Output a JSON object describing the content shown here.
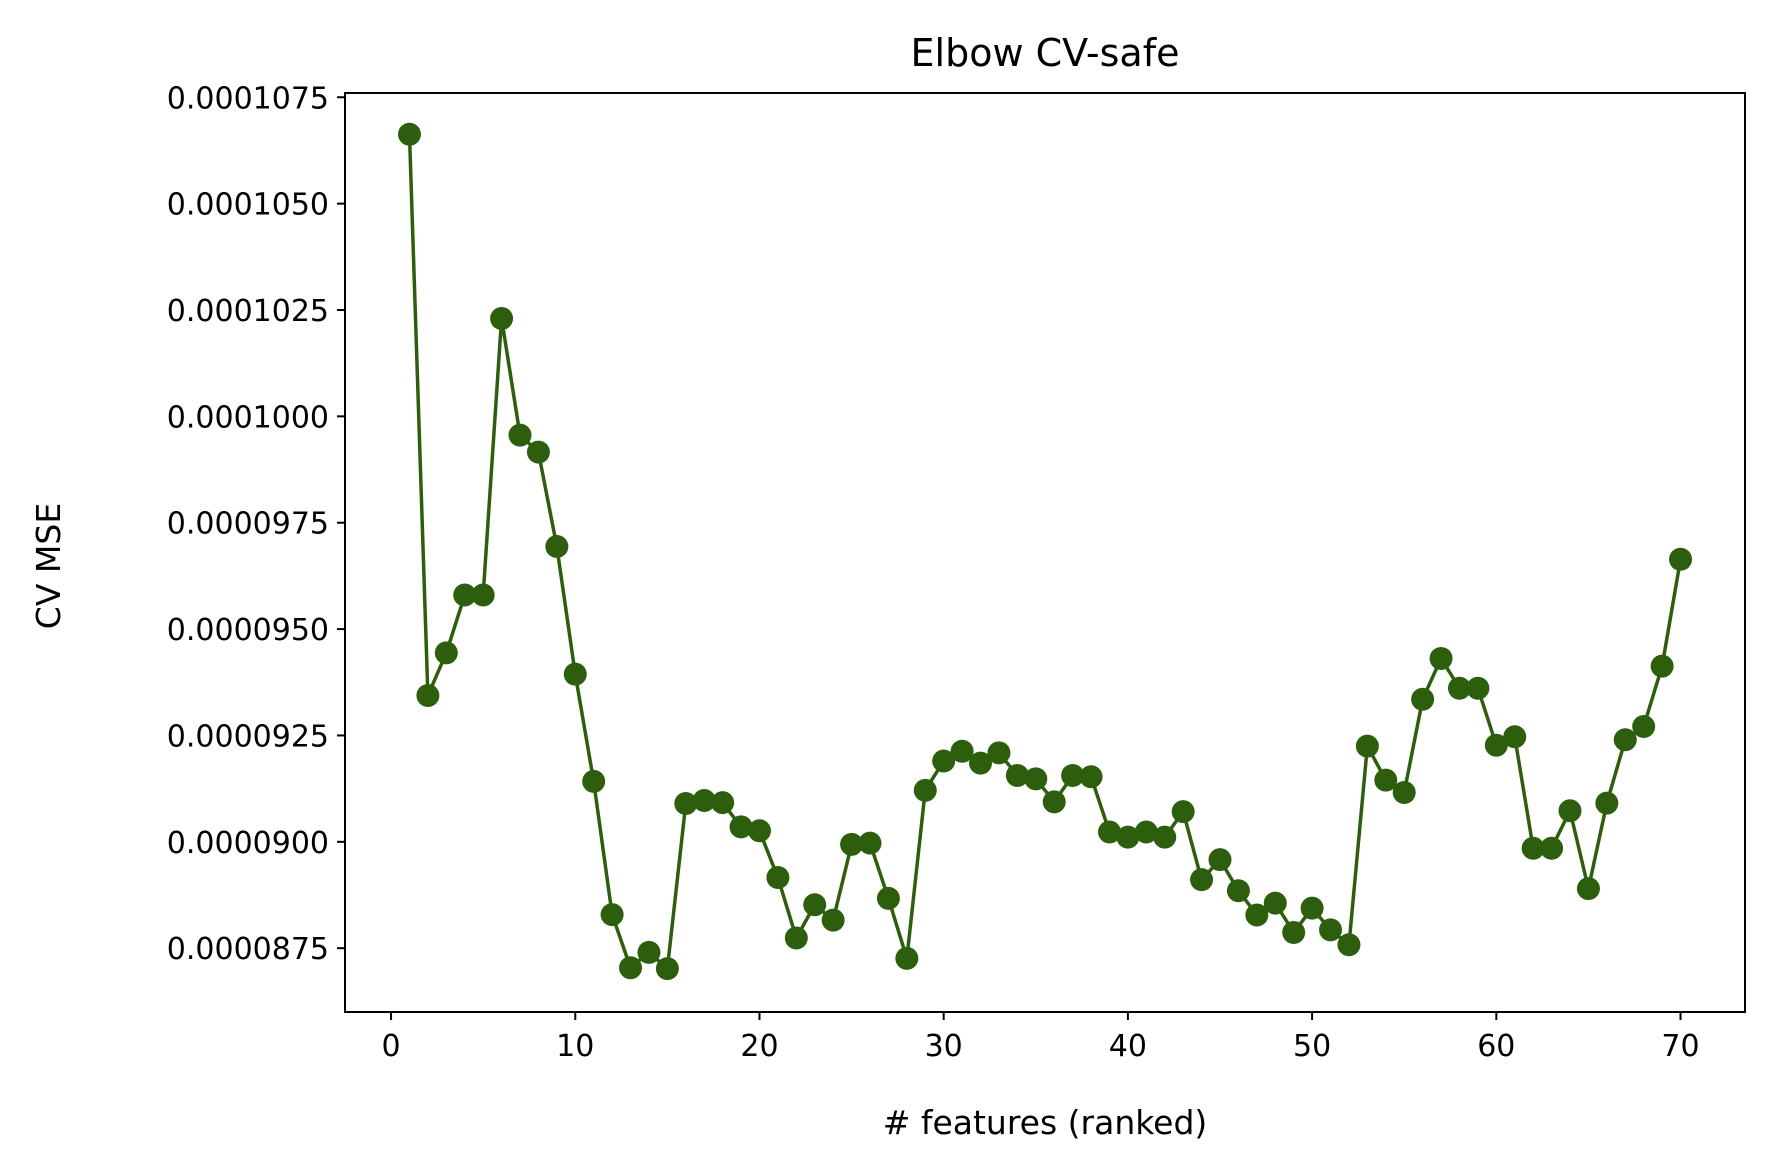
{
  "chart_data": {
    "type": "line",
    "title": "Elbow CV-safe",
    "xlabel": "# features (ranked)",
    "ylabel": "CV MSE",
    "xlim": [
      -2.5,
      73.5
    ],
    "ylim": [
      8.6e-05,
      0.0001076
    ],
    "xticks": [
      0,
      10,
      20,
      30,
      40,
      50,
      60,
      70
    ],
    "xtick_labels": [
      "0",
      "10",
      "20",
      "30",
      "40",
      "50",
      "60",
      "70"
    ],
    "yticks": [
      8.75e-05,
      9e-05,
      9.25e-05,
      9.5e-05,
      9.75e-05,
      0.0001,
      0.0001025,
      0.000105,
      0.0001075
    ],
    "ytick_labels": [
      "0.0000875",
      "0.0000900",
      "0.0000925",
      "0.0000950",
      "0.0000975",
      "0.0001000",
      "0.0001025",
      "0.0001050",
      "0.0001075"
    ],
    "grid": false,
    "series": [
      {
        "color": "#2d5e0d",
        "marker": "circle",
        "x": [
          1,
          2,
          3,
          4,
          5,
          6,
          7,
          8,
          9,
          10,
          11,
          12,
          13,
          14,
          15,
          16,
          17,
          18,
          19,
          20,
          21,
          22,
          23,
          24,
          25,
          26,
          27,
          28,
          29,
          30,
          31,
          32,
          33,
          34,
          35,
          36,
          37,
          38,
          39,
          40,
          41,
          42,
          43,
          44,
          45,
          46,
          47,
          48,
          49,
          50,
          51,
          52,
          53,
          54,
          55,
          56,
          57,
          58,
          59,
          60,
          61,
          62,
          63,
          64,
          65,
          66,
          67,
          68,
          69,
          70
        ],
        "y": [
          0.00010663,
          9.344e-05,
          9.444e-05,
          9.58e-05,
          9.58e-05,
          0.0001023,
          9.956e-05,
          9.916e-05,
          9.694e-05,
          9.394e-05,
          9.142e-05,
          8.829e-05,
          8.704e-05,
          8.74e-05,
          8.702e-05,
          9.09e-05,
          9.097e-05,
          9.092e-05,
          9.035e-05,
          9.026e-05,
          8.916e-05,
          8.774e-05,
          8.852e-05,
          8.816e-05,
          8.994e-05,
          8.997e-05,
          8.867e-05,
          8.726e-05,
          9.121e-05,
          9.19e-05,
          9.213e-05,
          9.185e-05,
          9.209e-05,
          9.156e-05,
          9.148e-05,
          9.094e-05,
          9.156e-05,
          9.153e-05,
          9.023e-05,
          9.011e-05,
          9.023e-05,
          9.011e-05,
          9.071e-05,
          8.911e-05,
          8.958e-05,
          8.885e-05,
          8.828e-05,
          8.856e-05,
          8.787e-05,
          8.844e-05,
          8.793e-05,
          8.758e-05,
          9.225e-05,
          9.145e-05,
          9.116e-05,
          9.335e-05,
          9.431e-05,
          9.361e-05,
          9.361e-05,
          9.227e-05,
          9.247e-05,
          8.985e-05,
          8.985e-05,
          9.073e-05,
          8.89e-05,
          9.091e-05,
          9.24e-05,
          9.271e-05,
          9.413e-05,
          9.664e-05
        ]
      }
    ]
  }
}
